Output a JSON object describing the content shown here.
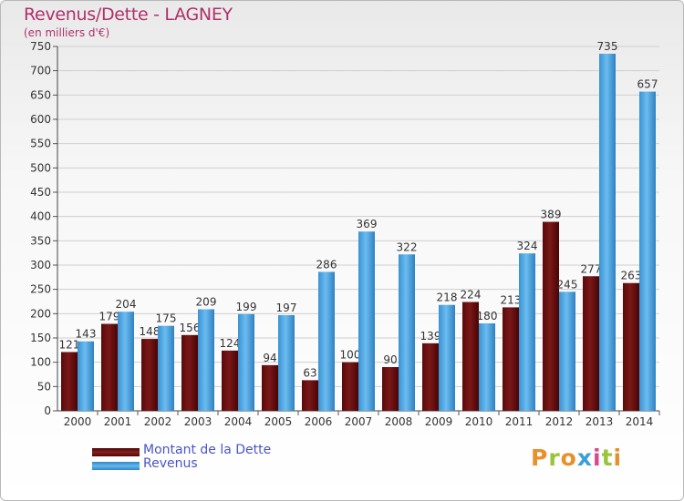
{
  "title": "Revenus/Dette - LAGNEY",
  "subtitle": "(en milliers d'€)",
  "logo_text": "Proxiti",
  "colors": {
    "dette": "#7a1818",
    "revenus": "#4aa6e4",
    "title": "#b0306a",
    "legend_text": "#4a55c8"
  },
  "chart_data": {
    "type": "bar",
    "title": "Revenus/Dette - LAGNEY",
    "ylabel": "(en milliers d'€)",
    "categories": [
      "2000",
      "2001",
      "2002",
      "2003",
      "2004",
      "2005",
      "2006",
      "2007",
      "2008",
      "2009",
      "2010",
      "2011",
      "2012",
      "2013",
      "2014"
    ],
    "series": [
      {
        "name": "Montant de la Dette",
        "values": [
          121,
          179,
          148,
          156,
          124,
          94,
          63,
          100,
          90,
          139,
          224,
          213,
          389,
          277,
          263
        ]
      },
      {
        "name": "Revenus",
        "values": [
          143,
          204,
          175,
          209,
          199,
          197,
          286,
          369,
          322,
          218,
          180,
          324,
          245,
          735,
          657
        ]
      }
    ],
    "ylim": [
      0,
      750
    ],
    "yticks": [
      0,
      50,
      100,
      150,
      200,
      250,
      300,
      350,
      400,
      450,
      500,
      550,
      600,
      650,
      700,
      750
    ],
    "grid": true,
    "legend": "bottom-left"
  }
}
